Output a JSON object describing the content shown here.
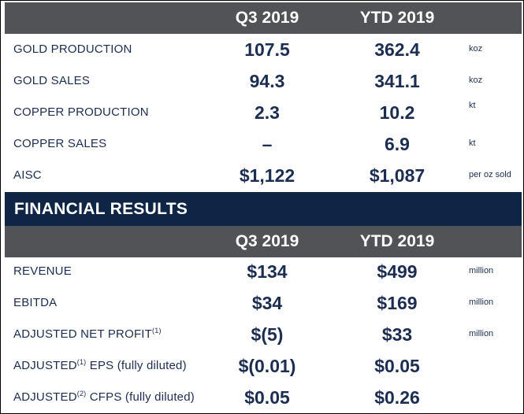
{
  "production": {
    "headers": [
      "Q3 2019",
      "YTD 2019"
    ],
    "rows": [
      {
        "label": "GOLD PRODUCTION",
        "q3": "107.5",
        "ytd": "362.4",
        "unit": "koz"
      },
      {
        "label": "GOLD SALES",
        "q3": "94.3",
        "ytd": "341.1",
        "unit": "koz"
      },
      {
        "label": "COPPER PRODUCTION",
        "q3": "2.3",
        "ytd": "10.2",
        "unit": "kt"
      },
      {
        "label": "COPPER SALES",
        "q3": "–",
        "ytd": "6.9",
        "unit": "kt"
      },
      {
        "label": "AISC",
        "q3": "$1,122",
        "ytd": "$1,087",
        "unit": "per oz sold"
      }
    ]
  },
  "financial": {
    "title": "FINANCIAL RESULTS",
    "headers": [
      "Q3 2019",
      "YTD 2019"
    ],
    "rows": [
      {
        "label": "REVENUE",
        "label_sup": "",
        "label_rest": "",
        "q3": "$134",
        "ytd": "$499",
        "unit": "million"
      },
      {
        "label": "EBITDA",
        "label_sup": "",
        "label_rest": "",
        "q3": "$34",
        "ytd": "$169",
        "unit": "million"
      },
      {
        "label": "ADJUSTED NET PROFIT",
        "label_sup": "(1)",
        "label_rest": "",
        "q3": "$(5)",
        "ytd": "$33",
        "unit": "million"
      },
      {
        "label": "ADJUSTED",
        "label_sup": "(1)",
        "label_rest": " EPS (fully diluted)",
        "q3": "$(0.01)",
        "ytd": "$0.05",
        "unit": ""
      },
      {
        "label": "ADJUSTED",
        "label_sup": "(2)",
        "label_rest": " CFPS (fully diluted)",
        "q3": "$0.05",
        "ytd": "$0.26",
        "unit": ""
      }
    ]
  },
  "colors": {
    "header_gray": "#525357",
    "band_navy": "#0f2546",
    "text_navy": "#1c2d52"
  }
}
